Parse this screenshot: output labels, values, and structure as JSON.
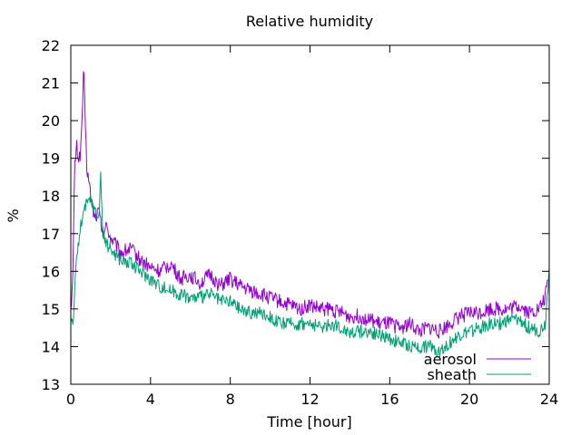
{
  "chart_data": {
    "type": "line",
    "title": "Relative humidity",
    "xlabel": "Time [hour]",
    "ylabel": "%",
    "xlim": [
      0,
      24
    ],
    "ylim": [
      13,
      22
    ],
    "xticks": [
      0,
      4,
      8,
      12,
      16,
      20,
      24
    ],
    "yticks": [
      13,
      14,
      15,
      16,
      17,
      18,
      19,
      20,
      21,
      22
    ],
    "grid": false,
    "legend_position": "bottom-right",
    "series": [
      {
        "name": "aerosol",
        "color": "#9400d3",
        "x": [
          0,
          0.1,
          0.2,
          0.3,
          0.4,
          0.5,
          0.6,
          0.65,
          0.7,
          0.8,
          1.0,
          1.2,
          1.4,
          1.6,
          1.8,
          2.0,
          2.5,
          3.0,
          3.5,
          4.0,
          4.5,
          5.0,
          5.5,
          6.0,
          6.5,
          7.0,
          7.5,
          8.0,
          8.5,
          9.0,
          9.5,
          10.0,
          10.5,
          11.0,
          11.5,
          12.0,
          12.5,
          13.0,
          13.5,
          14.0,
          14.5,
          15.0,
          15.5,
          16.0,
          16.5,
          17.0,
          17.5,
          18.0,
          18.5,
          19.0,
          19.5,
          20.0,
          20.5,
          21.0,
          21.5,
          22.0,
          22.5,
          23.0,
          23.5,
          23.8,
          24.0
        ],
        "y": [
          15.0,
          15.8,
          18.9,
          19.3,
          19.0,
          19.2,
          20.6,
          21.4,
          20.4,
          18.8,
          18.0,
          17.4,
          17.6,
          17.0,
          17.2,
          16.9,
          16.5,
          16.6,
          16.3,
          16.1,
          16.0,
          16.2,
          15.8,
          15.9,
          15.7,
          15.9,
          15.6,
          15.8,
          15.6,
          15.5,
          15.4,
          15.3,
          15.2,
          15.1,
          15.0,
          15.1,
          15.0,
          15.0,
          14.9,
          14.8,
          14.8,
          14.7,
          14.6,
          14.6,
          14.5,
          14.6,
          14.4,
          14.5,
          14.4,
          14.6,
          14.8,
          14.9,
          14.9,
          15.0,
          15.0,
          15.0,
          15.1,
          14.9,
          15.0,
          15.3,
          16.0
        ],
        "noise": 0.2
      },
      {
        "name": "sheath",
        "color": "#009e73",
        "x": [
          0,
          0.1,
          0.2,
          0.3,
          0.4,
          0.5,
          0.6,
          0.8,
          1.0,
          1.2,
          1.4,
          1.5,
          1.6,
          1.8,
          2.0,
          2.5,
          3.0,
          3.5,
          4.0,
          4.5,
          5.0,
          5.5,
          6.0,
          6.5,
          7.0,
          7.5,
          8.0,
          8.5,
          9.0,
          9.5,
          10.0,
          10.5,
          11.0,
          11.5,
          12.0,
          12.5,
          13.0,
          13.5,
          14.0,
          14.5,
          15.0,
          15.5,
          16.0,
          16.5,
          17.0,
          17.5,
          18.0,
          18.5,
          19.0,
          19.5,
          20.0,
          20.5,
          21.0,
          21.5,
          22.0,
          22.5,
          23.0,
          23.5,
          23.8,
          24.0
        ],
        "y": [
          14.8,
          14.6,
          15.5,
          16.4,
          16.8,
          17.2,
          17.5,
          17.8,
          17.9,
          17.6,
          17.4,
          18.6,
          17.0,
          16.7,
          16.6,
          16.3,
          16.2,
          16.0,
          15.8,
          15.6,
          15.5,
          15.4,
          15.3,
          15.3,
          15.4,
          15.2,
          15.2,
          15.0,
          14.9,
          14.9,
          14.8,
          14.6,
          14.6,
          14.6,
          14.6,
          14.5,
          14.6,
          14.5,
          14.4,
          14.4,
          14.4,
          14.3,
          14.2,
          14.1,
          14.0,
          14.0,
          14.0,
          13.9,
          14.1,
          14.3,
          14.4,
          14.5,
          14.6,
          14.6,
          14.7,
          14.7,
          14.5,
          14.4,
          14.6,
          16.1
        ],
        "noise": 0.18
      }
    ]
  }
}
